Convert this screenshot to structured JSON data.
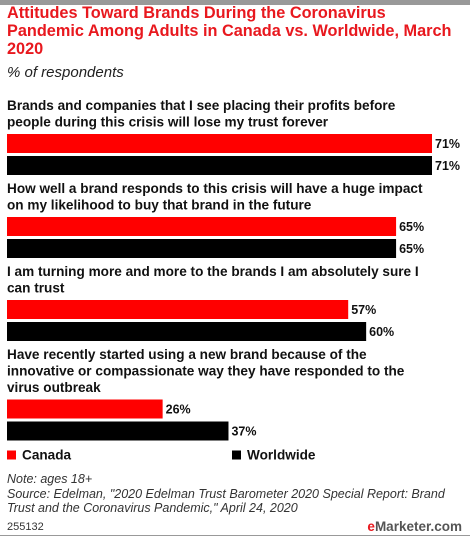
{
  "title": "Attitudes Toward Brands During the Coronavirus Pandemic Among Adults in Canada vs. Worldwide, March 2020",
  "subtitle": "% of respondents",
  "colors": {
    "accent": "#e8181e",
    "canada": "#ff0000",
    "worldwide": "#000000"
  },
  "chart_data": {
    "type": "bar",
    "orientation": "horizontal",
    "categories": [
      "Brands and companies that I see placing their profits before people during this crisis will lose my trust forever",
      "How well a brand responds to this crisis will have a huge impact on my likelihood to buy that brand in the future",
      "I am turning more and more to the brands I am absolutely sure I can trust",
      "Have recently started using a new brand because of the innovative or compassionate way they have responded to the virus outbreak"
    ],
    "series": [
      {
        "name": "Canada",
        "color": "#ff0000",
        "values": [
          71,
          65,
          57,
          26
        ],
        "labels": [
          "71%",
          "65%",
          "57%",
          "26%"
        ]
      },
      {
        "name": "Worldwide",
        "color": "#000000",
        "values": [
          71,
          65,
          60,
          37
        ],
        "labels": [
          "71%",
          "65%",
          "60%",
          "37%"
        ]
      }
    ],
    "value_max": 71,
    "legend": {
      "position": "bottom",
      "items": [
        "Canada",
        "Worldwide"
      ]
    },
    "grid": false
  },
  "footer": {
    "note": "Note: ages 18+",
    "source": "Source: Edelman, \"2020 Edelman Trust Barometer 2020 Special Report: Brand Trust and the Coronavirus Pandemic,\" April 24, 2020",
    "id": "255132",
    "brand_prefix": "e",
    "brand_name": "Marketer",
    "brand_suffix": ".com"
  }
}
